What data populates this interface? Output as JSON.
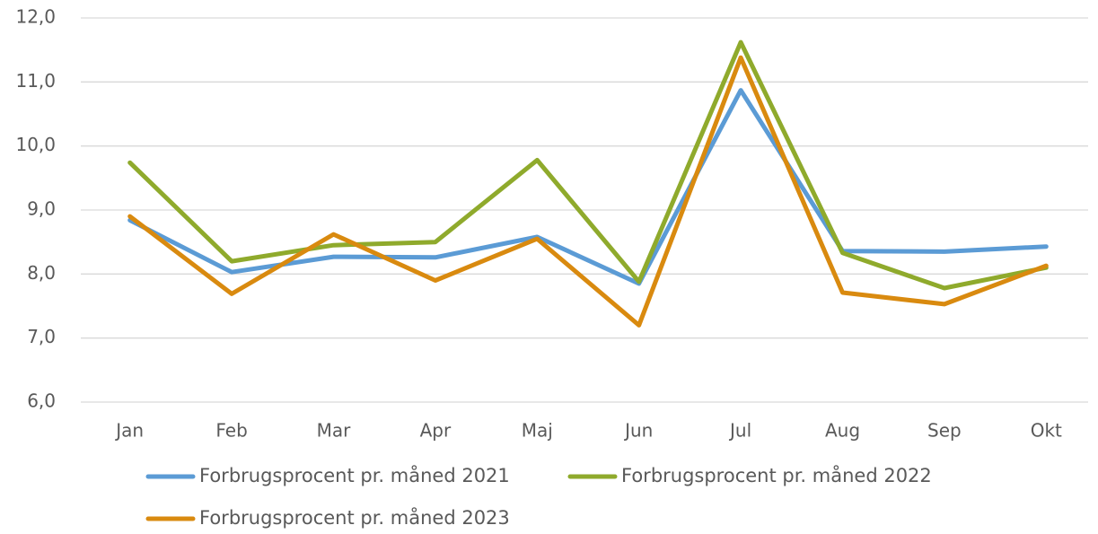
{
  "chart_data": {
    "type": "line",
    "categories": [
      "Jan",
      "Feb",
      "Mar",
      "Apr",
      "Maj",
      "Jun",
      "Jul",
      "Aug",
      "Sep",
      "Okt"
    ],
    "series": [
      {
        "name": "Forbrugsprocent pr. måned 2021",
        "color": "#5b9bd5",
        "values": [
          8.84,
          8.03,
          8.27,
          8.26,
          8.58,
          7.85,
          10.87,
          8.36,
          8.35,
          8.43
        ]
      },
      {
        "name": "Forbrugsprocent pr. måned 2022",
        "color": "#8faa2c",
        "values": [
          9.74,
          8.2,
          8.45,
          8.5,
          9.78,
          7.88,
          11.62,
          8.33,
          7.78,
          8.1
        ]
      },
      {
        "name": "Forbrugsprocent pr. måned 2023",
        "color": "#d98a0f",
        "values": [
          8.9,
          7.69,
          8.62,
          7.9,
          8.55,
          7.2,
          11.38,
          7.71,
          7.53,
          8.13
        ]
      }
    ],
    "ylim": [
      6,
      12
    ],
    "yticks": [
      {
        "value": 6,
        "label": "6,0"
      },
      {
        "value": 7,
        "label": "7,0"
      },
      {
        "value": 8,
        "label": "8,0"
      },
      {
        "value": 9,
        "label": "9,0"
      },
      {
        "value": 10,
        "label": "10,0"
      },
      {
        "value": 11,
        "label": "11,0"
      },
      {
        "value": 12,
        "label": "12,0"
      }
    ],
    "grid": true,
    "legend": "bottom"
  }
}
